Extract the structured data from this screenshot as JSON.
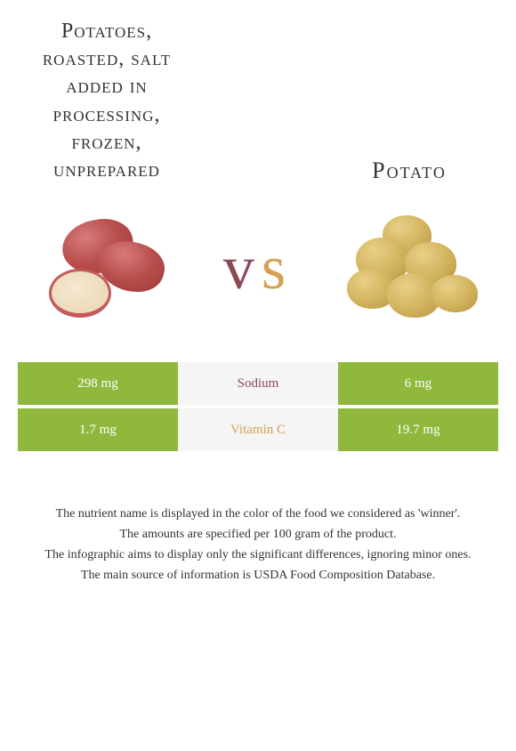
{
  "titles": {
    "left": "Potatoes, roasted, salt added in processing, frozen, unprepared",
    "right": "Potato"
  },
  "vs": {
    "v": "v",
    "s": "s"
  },
  "colors": {
    "left_accent": "#8fb83d",
    "right_accent": "#d4a054",
    "left_text": "#8b4a56",
    "middle_bg": "#f5f5f5",
    "middle_text_sodium": "#8b4a56",
    "middle_text_vitc": "#d4a054"
  },
  "comparison": {
    "rows": [
      {
        "nutrient": "Sodium",
        "left_value": "298 mg",
        "right_value": "6 mg",
        "left_bg": "#8fb83d",
        "right_bg": "#8fb83d",
        "nutrient_color": "#8b4a56"
      },
      {
        "nutrient": "Vitamin C",
        "left_value": "1.7 mg",
        "right_value": "19.7 mg",
        "left_bg": "#8fb83d",
        "right_bg": "#8fb83d",
        "nutrient_color": "#d4a054"
      }
    ]
  },
  "footer": {
    "line1": "The nutrient name is displayed in the color of the food we considered as 'winner'.",
    "line2": "The amounts are specified per 100 gram of the product.",
    "line3": "The infographic aims to display only the significant differences, ignoring minor ones.",
    "line4": "The main source of information is USDA Food Composition Database."
  }
}
